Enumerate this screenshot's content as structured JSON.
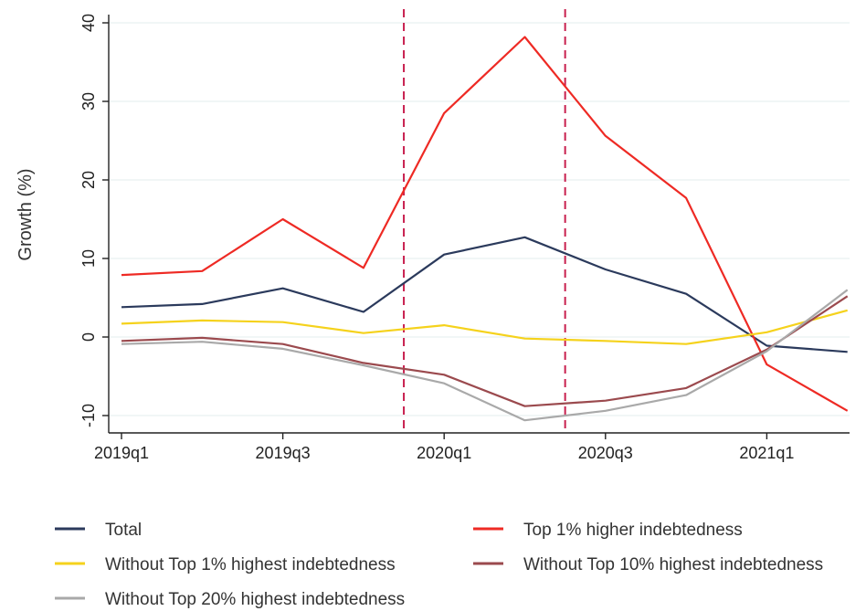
{
  "chart_data": {
    "type": "line",
    "xlabel": "",
    "ylabel": "Growth (%)",
    "ylim": [
      -11,
      41
    ],
    "yticks": [
      -10,
      0,
      10,
      20,
      30,
      40
    ],
    "grid": "horizontal",
    "categories": [
      "2019q1",
      "2019q2",
      "2019q3",
      "2019q4",
      "2020q1",
      "2020q2",
      "2020q3",
      "2020q4",
      "2021q1",
      "2021q2"
    ],
    "xtick_labels": [
      {
        "index": 0,
        "label": "2019q1"
      },
      {
        "index": 2,
        "label": "2019q3"
      },
      {
        "index": 4,
        "label": "2020q1"
      },
      {
        "index": 6,
        "label": "2020q3"
      },
      {
        "index": 8,
        "label": "2021q1"
      }
    ],
    "vertical_lines_at": [
      3.5,
      5.5
    ],
    "legend_placement": "bottom",
    "series": [
      {
        "name": "Total",
        "color": "#2b3a5c",
        "values": [
          3.8,
          4.2,
          6.2,
          3.2,
          10.5,
          12.7,
          8.6,
          5.5,
          -1.1,
          -1.9
        ]
      },
      {
        "name": "Top 1% higher indebtedness",
        "color": "#ee2a24",
        "values": [
          7.9,
          8.4,
          15.0,
          8.8,
          28.5,
          38.2,
          25.6,
          17.7,
          -3.5,
          -9.4
        ]
      },
      {
        "name": "Without Top 1% highest indebtedness",
        "color": "#f5d21c",
        "values": [
          1.7,
          2.1,
          1.9,
          0.5,
          1.5,
          -0.2,
          -0.5,
          -0.9,
          0.6,
          3.4
        ]
      },
      {
        "name": "Without Top 10% highest indebtedness",
        "color": "#9b4a4e",
        "values": [
          -0.5,
          -0.1,
          -0.9,
          -3.3,
          -4.8,
          -8.8,
          -8.1,
          -6.5,
          -1.6,
          5.2
        ]
      },
      {
        "name": "Without Top 20% highest indebtedness",
        "color": "#a9a9a9",
        "values": [
          -0.9,
          -0.6,
          -1.5,
          -3.6,
          -5.9,
          -10.6,
          -9.4,
          -7.4,
          -1.8,
          6.0
        ]
      }
    ]
  }
}
